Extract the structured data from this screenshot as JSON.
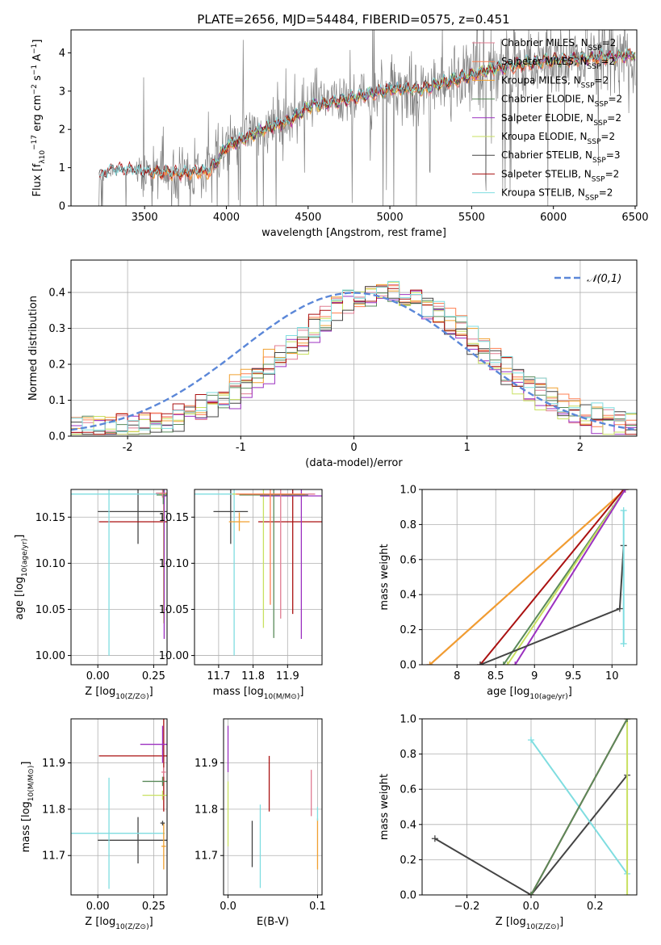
{
  "figure_title": "PLATE=2656, MJD=54484, FIBERID=0575, z=0.451",
  "colors": {
    "Chabrier MILES": "#e07b91",
    "Salpeter MILES": "#ff7f50",
    "Kroupa MILES": "#f0a030",
    "Chabrier ELODIE": "#5a8a5a",
    "Salpeter ELODIE": "#9b30c0",
    "Kroupa ELODIE": "#c8e060",
    "Chabrier STELIB": "#444444",
    "Salpeter STELIB": "#aa1111",
    "Kroupa STELIB": "#7fdde0",
    "data": "#808080",
    "gaussian": "#5b87d8"
  },
  "chart_data": [
    {
      "id": "spectrum",
      "type": "line",
      "title": "PLATE=2656, MJD=54484, FIBERID=0575, z=0.451",
      "xlabel": "wavelength [Angstrom, rest frame]",
      "ylabel": "Flux [f_λ 10^-17 erg cm^-2 s^-1 A^-1]",
      "xlim": [
        3050,
        6510
      ],
      "ylim": [
        0,
        4.6
      ],
      "xticks": [
        3500,
        4000,
        4500,
        5000,
        5500,
        6000,
        6500
      ],
      "yticks": [
        0,
        1,
        2,
        3,
        4
      ],
      "grid": false,
      "legend_position": "upper-right",
      "legend": [
        "Chabrier MILES, N_SSP=2",
        "Salpeter MILES, N_SSP=2",
        "Kroupa MILES, N_SSP=2",
        "Chabrier ELODIE, N_SSP=2",
        "Salpeter ELODIE, N_SSP=2",
        "Kroupa ELODIE, N_SSP=2",
        "Chabrier STELIB, N_SSP=3",
        "Salpeter STELIB, N_SSP=2",
        "Kroupa STELIB, N_SSP=2"
      ],
      "data_wavelength_range": [
        3200,
        6500
      ],
      "model_continuum": {
        "x": [
          3220,
          3300,
          3500,
          3700,
          3900,
          4000,
          4200,
          4400,
          4500,
          4700,
          5000,
          5200,
          5400,
          5600,
          5800,
          6000,
          6200,
          6500
        ],
        "y": [
          0.75,
          0.95,
          0.9,
          0.85,
          0.9,
          1.55,
          1.95,
          2.25,
          2.6,
          2.75,
          3.05,
          3.05,
          3.3,
          3.55,
          3.7,
          3.8,
          3.85,
          3.95
        ]
      }
    },
    {
      "id": "residuals",
      "type": "line",
      "xlabel": "(data-model)/error",
      "ylabel": "Normed distribution",
      "xlim": [
        -2.5,
        2.5
      ],
      "ylim": [
        0,
        0.49
      ],
      "xticks": [
        -2,
        -1,
        0,
        1,
        2
      ],
      "yticks": [
        0.0,
        0.1,
        0.2,
        0.3,
        0.4
      ],
      "grid": true,
      "legend_position": "upper-right",
      "legend": [
        "𝒩(0,1)"
      ],
      "gaussian": {
        "mu": 0,
        "sigma": 1
      },
      "histogram_bin_width": 0.1
    },
    {
      "id": "age-vs-Z",
      "type": "scatter",
      "xlabel": "Z [log10(Z/Z⊙)]",
      "ylabel": "age [log10(age/yr)]",
      "xlim": [
        -0.12,
        0.31
      ],
      "ylim": [
        9.99,
        10.18
      ],
      "xticks": [
        0.0,
        0.25
      ],
      "xtick_labels": [
        "0.00",
        "0.25"
      ],
      "yticks": [
        10.0,
        10.05,
        10.1,
        10.15
      ],
      "yticklabels": [
        "10.00",
        "10.05",
        "10.10",
        "10.15"
      ],
      "grid": true,
      "points": [
        {
          "model": "Chabrier STELIB",
          "x": 0.18,
          "y": 10.156,
          "xerr": 0.18,
          "yerr": 0.035
        },
        {
          "model": "Salpeter STELIB",
          "x": 0.295,
          "y": 10.145,
          "xerr": 0.29,
          "yerr": 0.1
        },
        {
          "model": "Kroupa STELIB",
          "x": 0.05,
          "y": 10.175,
          "xerr": 0.25,
          "yerr": 0.175
        },
        {
          "model": "Kroupa ELODIE",
          "x": 0.295,
          "y": 10.175,
          "xerr": 0.02,
          "yerr": 0.14
        },
        {
          "model": "Salpeter ELODIE",
          "x": 0.297,
          "y": 10.173,
          "xerr": 0.01,
          "yerr": 0.155
        },
        {
          "model": "Chabrier ELODIE",
          "x": 0.293,
          "y": 10.174,
          "xerr": 0.03,
          "yerr": 0.01
        },
        {
          "model": "Chabrier MILES",
          "x": 0.29,
          "y": 10.176,
          "xerr": 0.03,
          "yerr": 0.005
        }
      ]
    },
    {
      "id": "age-vs-mass",
      "type": "scatter",
      "xlabel": "mass [log10(M/M⊙)]",
      "ylabel": "",
      "xlim": [
        11.63,
        12.0
      ],
      "ylim": [
        9.99,
        10.18
      ],
      "xticks": [
        11.7,
        11.8,
        11.9
      ],
      "xtick_labels": [
        "11.7",
        "11.8",
        "11.9"
      ],
      "yticks": [
        10.0,
        10.05,
        10.1,
        10.15
      ],
      "yticklabels": [
        "10.00",
        "10.05",
        "10.10",
        "10.15"
      ],
      "grid": true,
      "points": [
        {
          "model": "Chabrier STELIB",
          "x": 11.735,
          "y": 10.156,
          "xerr": 0.05,
          "yerr": 0.035
        },
        {
          "model": "Salpeter STELIB",
          "x": 11.915,
          "y": 10.145,
          "xerr": 0.1,
          "yerr": 0.1
        },
        {
          "model": "Kroupa STELIB",
          "x": 11.745,
          "y": 10.175,
          "xerr": 0.12,
          "yerr": 0.175
        },
        {
          "model": "Kroupa ELODIE",
          "x": 11.83,
          "y": 10.175,
          "xerr": 0.09,
          "yerr": 0.145
        },
        {
          "model": "Salpeter ELODIE",
          "x": 11.94,
          "y": 10.173,
          "xerr": 0.12,
          "yerr": 0.155
        },
        {
          "model": "Chabrier ELODIE",
          "x": 11.86,
          "y": 10.174,
          "xerr": 0.1,
          "yerr": 0.155
        },
        {
          "model": "Chabrier MILES",
          "x": 11.88,
          "y": 10.175,
          "xerr": 0.1,
          "yerr": 0.135
        },
        {
          "model": "Salpeter MILES",
          "x": 11.85,
          "y": 10.175,
          "xerr": 0.1,
          "yerr": 0.12
        },
        {
          "model": "Kroupa MILES",
          "x": 11.76,
          "y": 10.145,
          "xerr": 0.03,
          "yerr": 0.01
        }
      ]
    },
    {
      "id": "weight-vs-age",
      "type": "line",
      "xlabel": "age [log10(age/yr)]",
      "ylabel": "mass weight",
      "xlim": [
        7.55,
        10.32
      ],
      "ylim": [
        0,
        1.0
      ],
      "xticks": [
        8.0,
        8.5,
        9.0,
        9.5,
        10.0
      ],
      "yticks": [
        0.0,
        0.2,
        0.4,
        0.6,
        0.8,
        1.0
      ],
      "grid": true,
      "series": [
        {
          "model": "Chabrier MILES",
          "x": [
            7.65,
            10.17
          ],
          "y": [
            0.0,
            1.0
          ]
        },
        {
          "model": "Salpeter MILES",
          "x": [
            7.65,
            10.17
          ],
          "y": [
            0.0,
            1.0
          ]
        },
        {
          "model": "Kroupa MILES",
          "x": [
            7.65,
            10.17
          ],
          "y": [
            0.0,
            1.0
          ]
        },
        {
          "model": "Salpeter STELIB",
          "x": [
            8.3,
            10.15
          ],
          "y": [
            0.0,
            1.0
          ]
        },
        {
          "model": "Chabrier ELODIE",
          "x": [
            8.6,
            10.17
          ],
          "y": [
            0.0,
            1.0
          ]
        },
        {
          "model": "Kroupa ELODIE",
          "x": [
            8.65,
            10.17
          ],
          "y": [
            0.0,
            1.0
          ]
        },
        {
          "model": "Salpeter ELODIE",
          "x": [
            8.75,
            10.17
          ],
          "y": [
            0.0,
            1.0
          ]
        },
        {
          "model": "Chabrier STELIB",
          "x": [
            8.3,
            10.1,
            10.15
          ],
          "y": [
            0.0,
            0.32,
            0.68
          ]
        },
        {
          "model": "Kroupa STELIB",
          "x": [
            10.15,
            10.15
          ],
          "y": [
            0.12,
            0.88
          ]
        }
      ]
    },
    {
      "id": "mass-vs-Z",
      "type": "scatter",
      "xlabel": "Z [log10(Z/Z⊙)]",
      "ylabel": "mass [log10(M/M⊙)]",
      "xlim": [
        -0.12,
        0.31
      ],
      "ylim": [
        11.615,
        11.995
      ],
      "xticks": [
        0.0,
        0.25
      ],
      "xtick_labels": [
        "0.00",
        "0.25"
      ],
      "yticks": [
        11.7,
        11.8,
        11.9
      ],
      "yticklabels": [
        "11.7",
        "11.8",
        "11.9"
      ],
      "grid": true,
      "points": [
        {
          "model": "Chabrier STELIB",
          "x": 0.18,
          "y": 11.733,
          "xerr": 0.18,
          "yerr": 0.05
        },
        {
          "model": "Salpeter STELIB",
          "x": 0.295,
          "y": 11.915,
          "xerr": 0.29,
          "yerr": 0.12
        },
        {
          "model": "Kroupa STELIB",
          "x": 0.05,
          "y": 11.748,
          "xerr": 0.25,
          "yerr": 0.12
        },
        {
          "model": "Salpeter ELODIE",
          "x": 0.29,
          "y": 11.94,
          "xerr": 0.1,
          "yerr": 0.04
        },
        {
          "model": "Chabrier ELODIE",
          "x": 0.29,
          "y": 11.86,
          "xerr": 0.09,
          "yerr": 0.01
        },
        {
          "model": "Kroupa ELODIE",
          "x": 0.29,
          "y": 11.83,
          "xerr": 0.09,
          "yerr": 0.01
        },
        {
          "model": "Chabrier MILES",
          "x": 0.295,
          "y": 11.88,
          "xerr": 0.01,
          "yerr": 0.01
        },
        {
          "model": "Kroupa MILES",
          "x": 0.295,
          "y": 11.72,
          "xerr": 0.01,
          "yerr": 0.05
        },
        {
          "model": "Chabrier STELIB",
          "x": 0.29,
          "y": 11.77,
          "xerr": 0.01,
          "yerr": 0.005
        }
      ]
    },
    {
      "id": "mass-vs-EBV",
      "type": "scatter",
      "xlabel": "E(B-V)",
      "ylabel": "",
      "xlim": [
        -0.005,
        0.105
      ],
      "ylim": [
        11.615,
        11.995
      ],
      "xticks": [
        0.0,
        0.1
      ],
      "xtick_labels": [
        "0.0",
        "0.1"
      ],
      "yticks": [
        11.7,
        11.8,
        11.9
      ],
      "yticklabels": [
        "11.7",
        "11.8",
        "11.9"
      ],
      "grid": true,
      "points": [
        {
          "model": "Salpeter ELODIE",
          "x": 0.0,
          "y": 11.93,
          "xerr": 0.0,
          "yerr": 0.05
        },
        {
          "model": "Kroupa ELODIE",
          "x": 0.0,
          "y": 11.79,
          "xerr": 0.0,
          "yerr": 0.07
        },
        {
          "model": "Chabrier STELIB",
          "x": 0.027,
          "y": 11.725,
          "xerr": 0.0,
          "yerr": 0.05
        },
        {
          "model": "Kroupa STELIB",
          "x": 0.036,
          "y": 11.72,
          "xerr": 0.0,
          "yerr": 0.09
        },
        {
          "model": "Salpeter STELIB",
          "x": 0.046,
          "y": 11.855,
          "xerr": 0.0,
          "yerr": 0.06
        },
        {
          "model": "Chabrier MILES",
          "x": 0.093,
          "y": 11.835,
          "xerr": 0.0,
          "yerr": 0.05
        },
        {
          "model": "Kroupa MILES",
          "x": 0.1,
          "y": 11.725,
          "xerr": 0.0,
          "yerr": 0.055
        },
        {
          "model": "Kroupa STELIB",
          "x": 0.1,
          "y": 11.79,
          "xerr": 0.0,
          "yerr": 0.015
        }
      ]
    },
    {
      "id": "weight-vs-Z",
      "type": "line",
      "xlabel": "Z [log10(Z/Z⊙)]",
      "ylabel": "mass weight",
      "xlim": [
        -0.34,
        0.33
      ],
      "ylim": [
        0,
        1.0
      ],
      "xticks": [
        -0.2,
        0.0,
        0.2
      ],
      "xtick_labels": [
        "−0.2",
        "0.0",
        "0.2"
      ],
      "yticks": [
        0.0,
        0.2,
        0.4,
        0.6,
        0.8,
        1.0
      ],
      "grid": true,
      "series": [
        {
          "model": "Chabrier STELIB",
          "x": [
            -0.3,
            0.0,
            0.3
          ],
          "y": [
            0.32,
            0.0,
            0.68
          ]
        },
        {
          "model": "Kroupa STELIB",
          "x": [
            0.0,
            0.3
          ],
          "y": [
            0.88,
            0.12
          ]
        },
        {
          "model": "Kroupa ELODIE",
          "x": [
            0.3,
            0.3
          ],
          "y": [
            0.0,
            1.0
          ]
        },
        {
          "model": "Salpeter STELIB",
          "x": [
            0.0,
            0.3
          ],
          "y": [
            0.0,
            1.0
          ]
        },
        {
          "model": "Chabrier ELODIE",
          "x": [
            0.0,
            0.3
          ],
          "y": [
            0.0,
            1.0
          ]
        }
      ]
    }
  ]
}
